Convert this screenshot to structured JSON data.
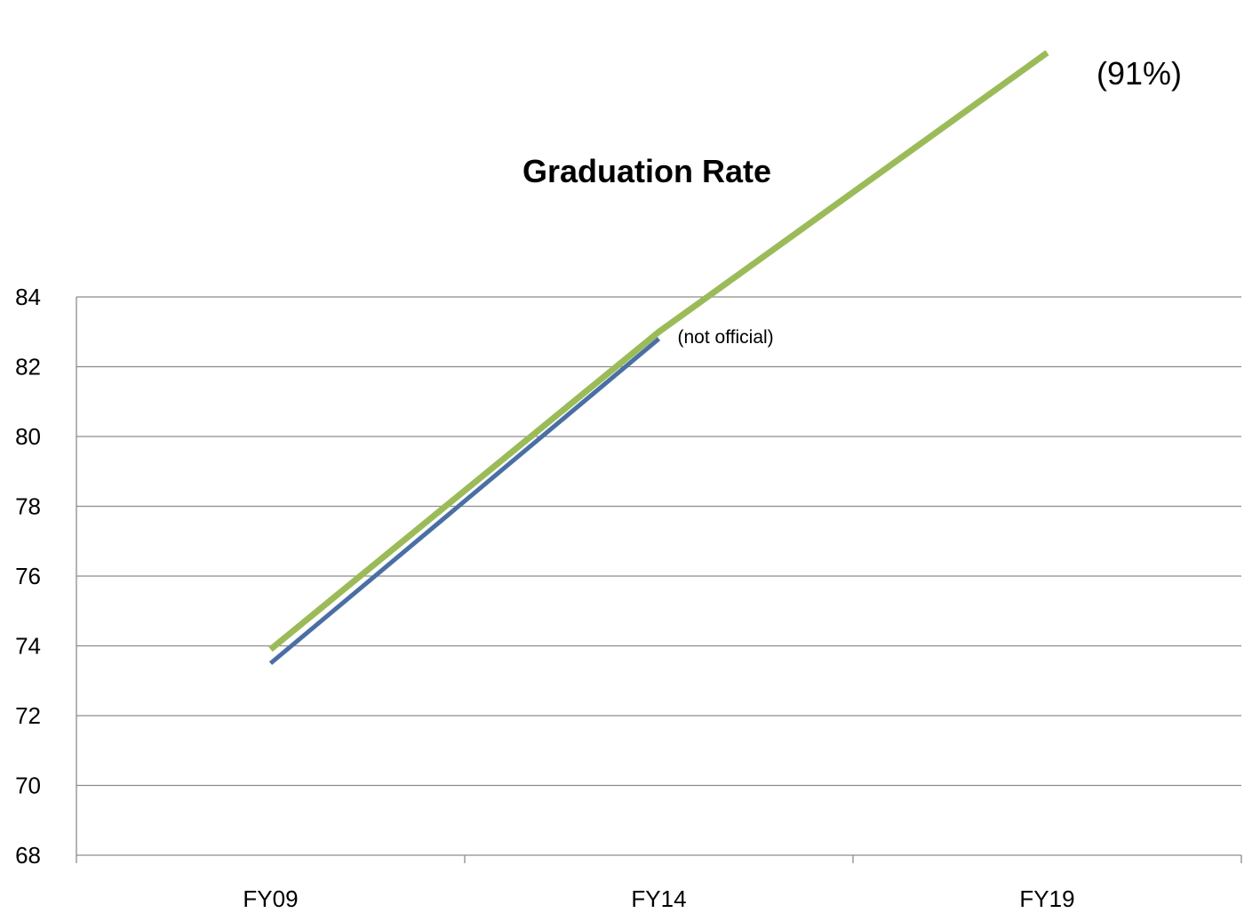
{
  "chart_data": {
    "type": "line",
    "title": "Graduation Rate",
    "xlabel": "",
    "ylabel": "",
    "categories": [
      "FY09",
      "FY14",
      "FY19"
    ],
    "ylim": [
      68,
      84
    ],
    "ytick_step": 2,
    "grid": true,
    "legend": "none",
    "series": [
      {
        "color": "#4a6fa5",
        "values": [
          73.5,
          82.8,
          null
        ]
      },
      {
        "color": "#9bbb59",
        "values": [
          73.9,
          83.0,
          91
        ]
      }
    ],
    "annotations": [
      {
        "text": "(not official)",
        "x": "FY14",
        "y": 82.8
      },
      {
        "text": "(91%)",
        "x": "FY19",
        "y": 91
      }
    ]
  }
}
